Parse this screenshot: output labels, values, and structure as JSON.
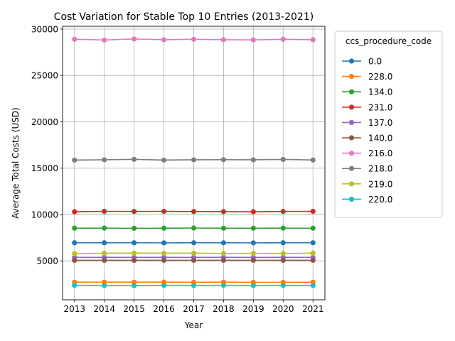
{
  "chart_data": {
    "type": "line",
    "title": "Cost Variation for Stable Top 10 Entries (2013-2021)",
    "xlabel": "Year",
    "ylabel": "Average Total Costs (USD)",
    "x": [
      2013,
      2014,
      2015,
      2016,
      2017,
      2018,
      2019,
      2020,
      2021
    ],
    "xlim": [
      2012.6,
      2021.4
    ],
    "ylim": [
      800,
      30300
    ],
    "yticks": [
      5000,
      10000,
      15000,
      20000,
      25000,
      30000
    ],
    "grid": true,
    "legend_title": "ccs_procedure_code",
    "legend_position": "outside-right",
    "series": [
      {
        "name": "0.0",
        "color": "#1f77b4",
        "values": [
          6950,
          6950,
          6950,
          6940,
          6950,
          6950,
          6940,
          6950,
          6950
        ]
      },
      {
        "name": "228.0",
        "color": "#ff7f0e",
        "values": [
          2700,
          2710,
          2700,
          2710,
          2690,
          2710,
          2680,
          2690,
          2700
        ]
      },
      {
        "name": "134.0",
        "color": "#2ca02c",
        "values": [
          8520,
          8530,
          8510,
          8520,
          8540,
          8520,
          8520,
          8530,
          8520
        ]
      },
      {
        "name": "231.0",
        "color": "#d62728",
        "values": [
          10300,
          10340,
          10330,
          10340,
          10320,
          10310,
          10300,
          10330,
          10340
        ]
      },
      {
        "name": "137.0",
        "color": "#9467bd",
        "values": [
          5370,
          5380,
          5370,
          5380,
          5370,
          5380,
          5370,
          5380,
          5370
        ]
      },
      {
        "name": "140.0",
        "color": "#8c564b",
        "values": [
          5060,
          5060,
          5060,
          5060,
          5060,
          5060,
          5060,
          5060,
          5060
        ]
      },
      {
        "name": "216.0",
        "color": "#e377c2",
        "values": [
          28900,
          28820,
          28930,
          28850,
          28900,
          28850,
          28830,
          28900,
          28850
        ]
      },
      {
        "name": "218.0",
        "color": "#7f7f7f",
        "values": [
          15870,
          15900,
          15950,
          15870,
          15900,
          15910,
          15900,
          15940,
          15880
        ]
      },
      {
        "name": "219.0",
        "color": "#bcbd22",
        "values": [
          5780,
          5820,
          5830,
          5820,
          5830,
          5800,
          5810,
          5800,
          5830
        ]
      },
      {
        "name": "220.0",
        "color": "#17becf",
        "values": [
          2360,
          2350,
          2340,
          2360,
          2350,
          2360,
          2350,
          2360,
          2350
        ]
      }
    ]
  }
}
